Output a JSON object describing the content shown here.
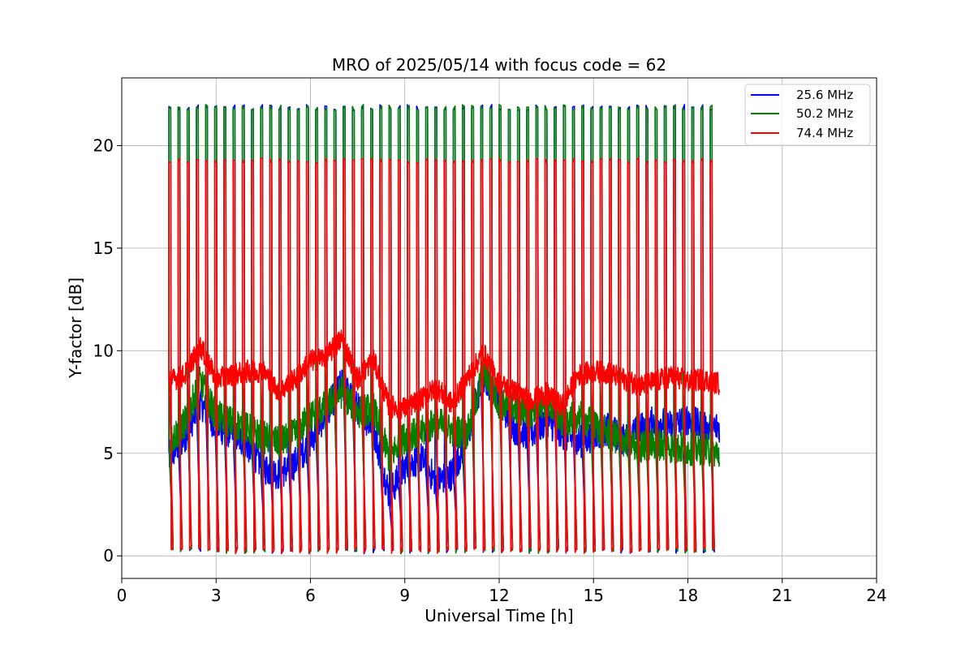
{
  "chart_data": {
    "type": "line",
    "title": "MRO of 2025/05/14 with focus code = 62",
    "xlabel": "Universal Time [h]",
    "ylabel": "Y-factor [dB]",
    "xlim": [
      0,
      24
    ],
    "ylim": [
      -1.1,
      23.3
    ],
    "xticks": [
      0,
      3,
      6,
      9,
      12,
      15,
      18,
      21,
      24
    ],
    "yticks": [
      0,
      5,
      10,
      15,
      20
    ],
    "grid": true,
    "legend_position": "top-right",
    "data_x_range": [
      1.5,
      19.0
    ],
    "calibration_spike_period_h": 0.2917,
    "spike_peaks_db": {
      "25.6 MHz": 22.0,
      "50.2 MHz": 22.0,
      "74.4 MHz": 19.4
    },
    "series": [
      {
        "name": "25.6 MHz",
        "color": "#0000ff",
        "x": [
          1.5,
          2.0,
          2.5,
          3.0,
          3.5,
          4.0,
          4.5,
          5.0,
          5.5,
          6.0,
          6.5,
          7.0,
          7.5,
          8.0,
          8.5,
          9.0,
          9.5,
          10.0,
          10.5,
          11.0,
          11.5,
          12.0,
          12.5,
          13.0,
          13.5,
          14.0,
          14.5,
          15.0,
          15.5,
          16.0,
          16.5,
          17.0,
          17.5,
          18.0,
          18.5,
          19.0
        ],
        "values": [
          4.8,
          5.8,
          7.5,
          6.3,
          6.0,
          5.4,
          4.3,
          4.0,
          4.5,
          5.6,
          7.0,
          8.4,
          7.2,
          6.2,
          3.0,
          4.3,
          4.8,
          3.6,
          4.0,
          5.8,
          8.8,
          7.6,
          6.2,
          5.9,
          6.6,
          6.0,
          5.5,
          5.9,
          6.2,
          5.6,
          6.2,
          6.6,
          6.3,
          6.7,
          6.2,
          6.3
        ]
      },
      {
        "name": "50.2 MHz",
        "color": "#008000",
        "x": [
          1.5,
          2.0,
          2.5,
          3.0,
          3.5,
          4.0,
          4.5,
          5.0,
          5.5,
          6.0,
          6.5,
          7.0,
          7.5,
          8.0,
          8.5,
          9.0,
          9.5,
          10.0,
          10.5,
          11.0,
          11.5,
          12.0,
          12.5,
          13.0,
          13.5,
          14.0,
          14.5,
          15.0,
          15.5,
          16.0,
          16.5,
          17.0,
          17.5,
          18.0,
          18.5,
          19.0
        ],
        "values": [
          5.5,
          6.5,
          8.5,
          6.8,
          6.5,
          6.2,
          5.8,
          5.5,
          5.9,
          6.8,
          7.3,
          8.0,
          7.0,
          7.2,
          4.8,
          5.8,
          6.0,
          6.5,
          6.1,
          6.0,
          9.0,
          7.4,
          7.2,
          7.0,
          7.6,
          6.5,
          6.8,
          6.4,
          5.9,
          5.6,
          5.3,
          5.5,
          5.3,
          5.2,
          5.2,
          5.0
        ]
      },
      {
        "name": "74.4 MHz",
        "color": "#ff0000",
        "x": [
          1.5,
          2.0,
          2.5,
          3.0,
          3.5,
          4.0,
          4.5,
          5.0,
          5.5,
          6.0,
          6.5,
          7.0,
          7.5,
          8.0,
          8.5,
          9.0,
          9.5,
          10.0,
          10.5,
          11.0,
          11.5,
          12.0,
          12.5,
          13.0,
          13.5,
          14.0,
          14.5,
          15.0,
          15.5,
          16.0,
          16.5,
          17.0,
          17.5,
          18.0,
          18.5,
          19.0
        ],
        "values": [
          8.5,
          8.8,
          10.2,
          8.6,
          8.8,
          9.0,
          9.0,
          8.0,
          8.6,
          9.5,
          9.7,
          10.6,
          8.6,
          9.6,
          7.3,
          7.2,
          7.6,
          8.2,
          7.4,
          8.7,
          9.9,
          8.4,
          8.0,
          7.6,
          7.9,
          7.3,
          8.8,
          9.0,
          8.9,
          8.6,
          8.3,
          8.5,
          8.8,
          8.5,
          8.6,
          8.4
        ]
      }
    ]
  }
}
